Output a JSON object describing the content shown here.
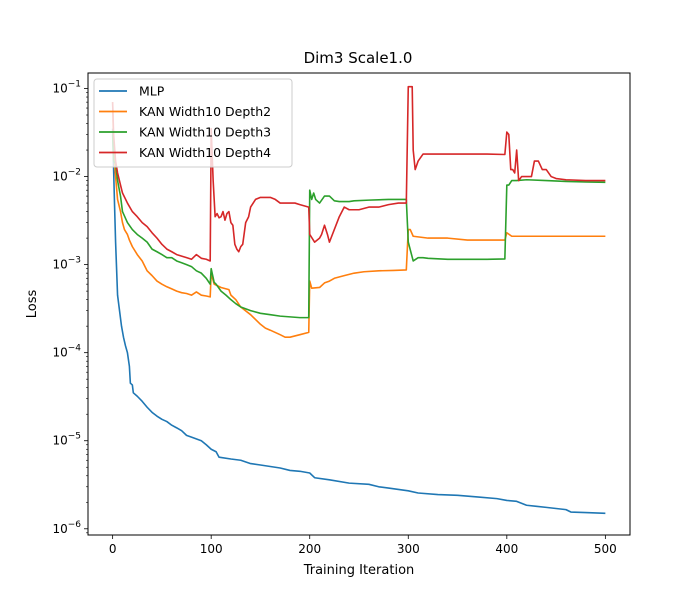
{
  "chart_data": {
    "type": "line",
    "title": "Dim3 Scale1.0",
    "xlabel": "Training Iteration",
    "ylabel": "Loss",
    "xlim": [
      -25,
      525
    ],
    "ylim": [
      8.5e-07,
      0.15
    ],
    "yscale": "log",
    "legend_position": "top-left",
    "x_ticks": [
      {
        "value": 0,
        "label": "0"
      },
      {
        "value": 100,
        "label": "100"
      },
      {
        "value": 200,
        "label": "200"
      },
      {
        "value": 300,
        "label": "300"
      },
      {
        "value": 400,
        "label": "400"
      },
      {
        "value": 500,
        "label": "500"
      }
    ],
    "y_ticks": [
      {
        "value": 1e-06,
        "base": "10",
        "exp": "−6"
      },
      {
        "value": 1e-05,
        "base": "10",
        "exp": "−5"
      },
      {
        "value": 0.0001,
        "base": "10",
        "exp": "−4"
      },
      {
        "value": 0.001,
        "base": "10",
        "exp": "−3"
      },
      {
        "value": 0.01,
        "base": "10",
        "exp": "−2"
      },
      {
        "value": 0.1,
        "base": "10",
        "exp": "−1"
      }
    ],
    "series": [
      {
        "name": "MLP",
        "color": "#1f77b4",
        "points": [
          [
            0,
            0.035
          ],
          [
            1,
            0.012
          ],
          [
            2,
            0.0045
          ],
          [
            3,
            0.0018
          ],
          [
            4,
            0.0009
          ],
          [
            5,
            0.00045
          ],
          [
            7,
            0.0003
          ],
          [
            9,
            0.0002
          ],
          [
            11,
            0.00015
          ],
          [
            13,
            0.00012
          ],
          [
            15,
            0.0001
          ],
          [
            17,
            7e-05
          ],
          [
            18,
            4.5e-05
          ],
          [
            20,
            4.3e-05
          ],
          [
            21,
            3.5e-05
          ],
          [
            25,
            3.2e-05
          ],
          [
            30,
            2.8e-05
          ],
          [
            35,
            2.4e-05
          ],
          [
            40,
            2.1e-05
          ],
          [
            45,
            1.9e-05
          ],
          [
            50,
            1.75e-05
          ],
          [
            55,
            1.65e-05
          ],
          [
            60,
            1.5e-05
          ],
          [
            65,
            1.4e-05
          ],
          [
            70,
            1.3e-05
          ],
          [
            75,
            1.15e-05
          ],
          [
            80,
            1.1e-05
          ],
          [
            90,
            1e-05
          ],
          [
            95,
            9e-06
          ],
          [
            100,
            8e-06
          ],
          [
            105,
            7.5e-06
          ],
          [
            108,
            6.5e-06
          ],
          [
            120,
            6.2e-06
          ],
          [
            130,
            6e-06
          ],
          [
            140,
            5.5e-06
          ],
          [
            150,
            5.3e-06
          ],
          [
            160,
            5.1e-06
          ],
          [
            170,
            4.9e-06
          ],
          [
            180,
            4.6e-06
          ],
          [
            190,
            4.5e-06
          ],
          [
            200,
            4.3e-06
          ],
          [
            205,
            3.8e-06
          ],
          [
            220,
            3.6e-06
          ],
          [
            240,
            3.3e-06
          ],
          [
            260,
            3.2e-06
          ],
          [
            270,
            3e-06
          ],
          [
            280,
            2.9e-06
          ],
          [
            300,
            2.7e-06
          ],
          [
            310,
            2.55e-06
          ],
          [
            330,
            2.45e-06
          ],
          [
            350,
            2.4e-06
          ],
          [
            370,
            2.3e-06
          ],
          [
            390,
            2.2e-06
          ],
          [
            400,
            2.1e-06
          ],
          [
            410,
            2.05e-06
          ],
          [
            420,
            1.85e-06
          ],
          [
            430,
            1.8e-06
          ],
          [
            440,
            1.75e-06
          ],
          [
            450,
            1.7e-06
          ],
          [
            460,
            1.65e-06
          ],
          [
            465,
            1.55e-06
          ],
          [
            480,
            1.53e-06
          ],
          [
            500,
            1.5e-06
          ]
        ]
      },
      {
        "name": "KAN Width10 Depth2",
        "color": "#ff7f0e",
        "points": [
          [
            0,
            0.07
          ],
          [
            1,
            0.02
          ],
          [
            3,
            0.01
          ],
          [
            5,
            0.0055
          ],
          [
            8,
            0.004
          ],
          [
            10,
            0.003
          ],
          [
            12,
            0.0025
          ],
          [
            15,
            0.0022
          ],
          [
            17,
            0.0019
          ],
          [
            20,
            0.0016
          ],
          [
            25,
            0.0013
          ],
          [
            30,
            0.0011
          ],
          [
            35,
            0.00085
          ],
          [
            40,
            0.00075
          ],
          [
            45,
            0.00065
          ],
          [
            50,
            0.0006
          ],
          [
            55,
            0.00056
          ],
          [
            60,
            0.00053
          ],
          [
            65,
            0.0005
          ],
          [
            70,
            0.00048
          ],
          [
            75,
            0.00047
          ],
          [
            80,
            0.00045
          ],
          [
            85,
            0.00049
          ],
          [
            90,
            0.00045
          ],
          [
            95,
            0.00044
          ],
          [
            99,
            0.00043
          ],
          [
            100,
            0.0008
          ],
          [
            103,
            0.0006
          ],
          [
            110,
            0.00055
          ],
          [
            118,
            0.00052
          ],
          [
            120,
            0.00045
          ],
          [
            125,
            0.0004
          ],
          [
            130,
            0.00033
          ],
          [
            140,
            0.00027
          ],
          [
            150,
            0.00021
          ],
          [
            155,
            0.00019
          ],
          [
            160,
            0.00018
          ],
          [
            170,
            0.00016
          ],
          [
            175,
            0.00015
          ],
          [
            180,
            0.00015
          ],
          [
            190,
            0.00016
          ],
          [
            199,
            0.00017
          ],
          [
            200,
            0.00065
          ],
          [
            202,
            0.00054
          ],
          [
            210,
            0.00055
          ],
          [
            215,
            0.00062
          ],
          [
            220,
            0.00065
          ],
          [
            225,
            0.0007
          ],
          [
            235,
            0.00075
          ],
          [
            245,
            0.0008
          ],
          [
            255,
            0.00083
          ],
          [
            270,
            0.00085
          ],
          [
            285,
            0.00086
          ],
          [
            298,
            0.00087
          ],
          [
            300,
            0.0025
          ],
          [
            302,
            0.0025
          ],
          [
            305,
            0.0021
          ],
          [
            320,
            0.002
          ],
          [
            340,
            0.002
          ],
          [
            360,
            0.0019
          ],
          [
            380,
            0.0019
          ],
          [
            398,
            0.0019
          ],
          [
            400,
            0.0023
          ],
          [
            405,
            0.0021
          ],
          [
            420,
            0.0021
          ],
          [
            450,
            0.0021
          ],
          [
            480,
            0.0021
          ],
          [
            500,
            0.0021
          ]
        ]
      },
      {
        "name": "KAN Width10 Depth3",
        "color": "#2ca02c",
        "points": [
          [
            0,
            0.03
          ],
          [
            1,
            0.015
          ],
          [
            3,
            0.014
          ],
          [
            5,
            0.009
          ],
          [
            8,
            0.006
          ],
          [
            10,
            0.004
          ],
          [
            15,
            0.003
          ],
          [
            20,
            0.0025
          ],
          [
            25,
            0.0022
          ],
          [
            30,
            0.002
          ],
          [
            35,
            0.0018
          ],
          [
            40,
            0.0015
          ],
          [
            45,
            0.0014
          ],
          [
            50,
            0.0013
          ],
          [
            55,
            0.0012
          ],
          [
            60,
            0.0012
          ],
          [
            65,
            0.0011
          ],
          [
            70,
            0.00105
          ],
          [
            75,
            0.001
          ],
          [
            80,
            0.00095
          ],
          [
            85,
            0.00085
          ],
          [
            90,
            0.0008
          ],
          [
            95,
            0.0007
          ],
          [
            99,
            0.0006
          ],
          [
            100,
            0.0009
          ],
          [
            103,
            0.00063
          ],
          [
            105,
            0.0006
          ],
          [
            110,
            0.0005
          ],
          [
            115,
            0.00045
          ],
          [
            120,
            0.0004
          ],
          [
            125,
            0.00036
          ],
          [
            130,
            0.00033
          ],
          [
            140,
            0.0003
          ],
          [
            150,
            0.00028
          ],
          [
            160,
            0.00027
          ],
          [
            170,
            0.00026
          ],
          [
            180,
            0.000255
          ],
          [
            190,
            0.00025
          ],
          [
            199,
            0.00025
          ],
          [
            200,
            0.007
          ],
          [
            202,
            0.0055
          ],
          [
            204,
            0.0065
          ],
          [
            206,
            0.0055
          ],
          [
            210,
            0.005
          ],
          [
            215,
            0.006
          ],
          [
            220,
            0.006
          ],
          [
            225,
            0.0053
          ],
          [
            230,
            0.0052
          ],
          [
            240,
            0.0052
          ],
          [
            245,
            0.0053
          ],
          [
            260,
            0.0054
          ],
          [
            280,
            0.0055
          ],
          [
            298,
            0.0055
          ],
          [
            300,
            0.0018
          ],
          [
            305,
            0.0011
          ],
          [
            310,
            0.0012
          ],
          [
            315,
            0.0012
          ],
          [
            320,
            0.00118
          ],
          [
            340,
            0.00115
          ],
          [
            360,
            0.00115
          ],
          [
            380,
            0.00115
          ],
          [
            398,
            0.00116
          ],
          [
            400,
            0.008
          ],
          [
            402,
            0.008
          ],
          [
            405,
            0.009
          ],
          [
            410,
            0.009
          ],
          [
            420,
            0.0092
          ],
          [
            440,
            0.009
          ],
          [
            460,
            0.0088
          ],
          [
            480,
            0.0087
          ],
          [
            500,
            0.0086
          ]
        ]
      },
      {
        "name": "KAN Width10 Depth4",
        "color": "#d62728",
        "points": [
          [
            0,
            0.07
          ],
          [
            1,
            0.03
          ],
          [
            3,
            0.015
          ],
          [
            5,
            0.011
          ],
          [
            8,
            0.008
          ],
          [
            10,
            0.0065
          ],
          [
            15,
            0.005
          ],
          [
            20,
            0.004
          ],
          [
            25,
            0.0035
          ],
          [
            30,
            0.003
          ],
          [
            35,
            0.0027
          ],
          [
            40,
            0.0023
          ],
          [
            45,
            0.002
          ],
          [
            50,
            0.0017
          ],
          [
            55,
            0.0015
          ],
          [
            60,
            0.0014
          ],
          [
            65,
            0.0013
          ],
          [
            70,
            0.00125
          ],
          [
            75,
            0.0012
          ],
          [
            80,
            0.00115
          ],
          [
            85,
            0.0013
          ],
          [
            90,
            0.00118
          ],
          [
            95,
            0.00115
          ],
          [
            99,
            0.0011
          ],
          [
            100,
            0.035
          ],
          [
            102,
            0.009
          ],
          [
            104,
            0.0035
          ],
          [
            106,
            0.0038
          ],
          [
            108,
            0.0034
          ],
          [
            110,
            0.0035
          ],
          [
            112,
            0.004
          ],
          [
            114,
            0.0032
          ],
          [
            116,
            0.0038
          ],
          [
            118,
            0.004
          ],
          [
            120,
            0.003
          ],
          [
            122,
            0.0028
          ],
          [
            124,
            0.0017
          ],
          [
            126,
            0.0015
          ],
          [
            128,
            0.0014
          ],
          [
            130,
            0.0016
          ],
          [
            132,
            0.0017
          ],
          [
            135,
            0.003
          ],
          [
            138,
            0.0035
          ],
          [
            140,
            0.0045
          ],
          [
            145,
            0.0055
          ],
          [
            150,
            0.0058
          ],
          [
            160,
            0.0058
          ],
          [
            165,
            0.0055
          ],
          [
            170,
            0.005
          ],
          [
            180,
            0.005
          ],
          [
            185,
            0.005
          ],
          [
            190,
            0.0048
          ],
          [
            199,
            0.0045
          ],
          [
            200,
            0.0022
          ],
          [
            205,
            0.0018
          ],
          [
            210,
            0.002
          ],
          [
            212,
            0.0022
          ],
          [
            215,
            0.0028
          ],
          [
            218,
            0.0022
          ],
          [
            220,
            0.0018
          ],
          [
            230,
            0.0035
          ],
          [
            235,
            0.0045
          ],
          [
            240,
            0.0042
          ],
          [
            250,
            0.0042
          ],
          [
            260,
            0.0045
          ],
          [
            270,
            0.0045
          ],
          [
            280,
            0.0048
          ],
          [
            290,
            0.005
          ],
          [
            298,
            0.005
          ],
          [
            300,
            0.105
          ],
          [
            302,
            0.105
          ],
          [
            304,
            0.105
          ],
          [
            305,
            0.02
          ],
          [
            307,
            0.012
          ],
          [
            310,
            0.015
          ],
          [
            315,
            0.018
          ],
          [
            320,
            0.018
          ],
          [
            340,
            0.018
          ],
          [
            360,
            0.018
          ],
          [
            380,
            0.018
          ],
          [
            398,
            0.0178
          ],
          [
            400,
            0.032
          ],
          [
            402,
            0.03
          ],
          [
            404,
            0.012
          ],
          [
            406,
            0.012
          ],
          [
            408,
            0.011
          ],
          [
            410,
            0.02
          ],
          [
            412,
            0.009
          ],
          [
            415,
            0.01
          ],
          [
            420,
            0.01
          ],
          [
            425,
            0.01
          ],
          [
            428,
            0.015
          ],
          [
            432,
            0.015
          ],
          [
            436,
            0.012
          ],
          [
            440,
            0.012
          ],
          [
            445,
            0.01
          ],
          [
            450,
            0.0095
          ],
          [
            460,
            0.0092
          ],
          [
            480,
            0.009
          ],
          [
            500,
            0.009
          ]
        ]
      }
    ]
  }
}
